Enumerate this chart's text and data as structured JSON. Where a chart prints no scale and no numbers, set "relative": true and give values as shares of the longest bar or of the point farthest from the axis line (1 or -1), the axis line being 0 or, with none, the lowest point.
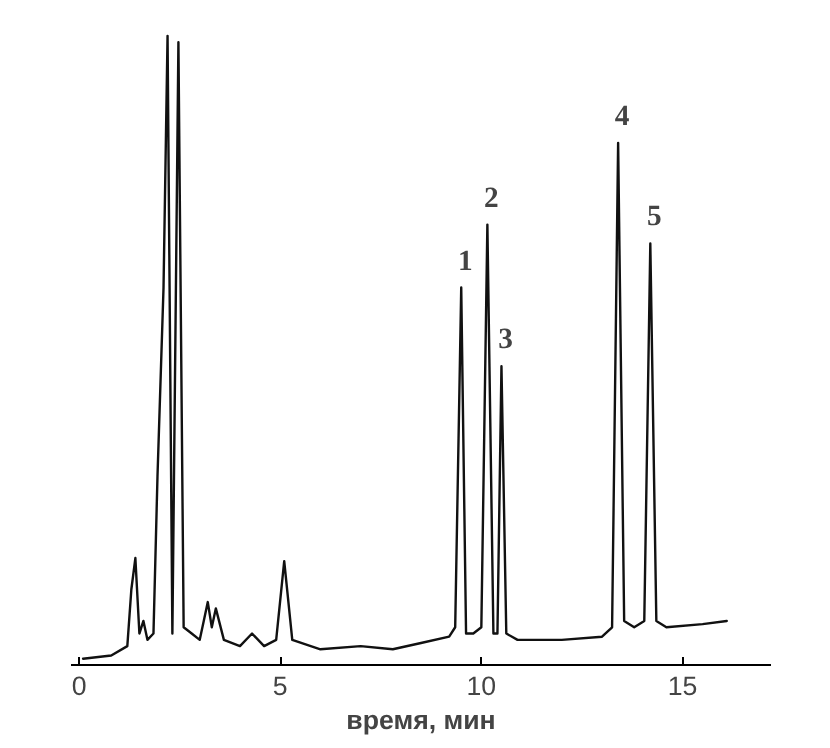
{
  "chart_data": {
    "type": "line",
    "relative": true,
    "xlabel": "время, мин",
    "xlim": [
      -0.2,
      17.2
    ],
    "xticks": [
      0,
      5,
      10,
      15
    ],
    "grid": false,
    "marker": "none",
    "line_style": "solid",
    "series": [
      {
        "color": "#111111",
        "x": [
          0.1,
          0.8,
          1.2,
          1.3,
          1.4,
          1.5,
          1.6,
          1.7,
          1.85,
          1.95,
          2.1,
          2.2,
          2.32,
          2.47,
          2.6,
          2.8,
          3.0,
          3.1,
          3.2,
          3.3,
          3.4,
          3.6,
          4.0,
          4.3,
          4.6,
          4.9,
          5.1,
          5.3,
          6.0,
          7.0,
          7.8,
          8.5,
          9.2,
          9.35,
          9.5,
          9.62,
          9.8,
          10.0,
          10.15,
          10.3,
          10.4,
          10.5,
          10.62,
          10.9,
          12.0,
          13.0,
          13.25,
          13.4,
          13.55,
          13.8,
          14.05,
          14.2,
          14.35,
          14.6,
          15.5,
          16.1
        ],
        "values": [
          0.01,
          0.015,
          0.03,
          0.12,
          0.17,
          0.05,
          0.07,
          0.04,
          0.05,
          0.3,
          0.6,
          1.0,
          0.05,
          0.99,
          0.06,
          0.05,
          0.04,
          0.07,
          0.1,
          0.06,
          0.09,
          0.04,
          0.03,
          0.05,
          0.03,
          0.04,
          0.165,
          0.04,
          0.025,
          0.03,
          0.025,
          0.035,
          0.045,
          0.06,
          0.6,
          0.05,
          0.05,
          0.06,
          0.7,
          0.05,
          0.05,
          0.475,
          0.05,
          0.04,
          0.04,
          0.045,
          0.06,
          0.83,
          0.07,
          0.06,
          0.07,
          0.67,
          0.07,
          0.06,
          0.065,
          0.07
        ]
      }
    ],
    "annotations": [
      {
        "text": "1",
        "x": 9.5,
        "y": 0.6
      },
      {
        "text": "2",
        "x": 10.15,
        "y": 0.7
      },
      {
        "text": "3",
        "x": 10.5,
        "y": 0.475
      },
      {
        "text": "4",
        "x": 13.4,
        "y": 0.83
      },
      {
        "text": "5",
        "x": 14.2,
        "y": 0.67
      }
    ]
  }
}
